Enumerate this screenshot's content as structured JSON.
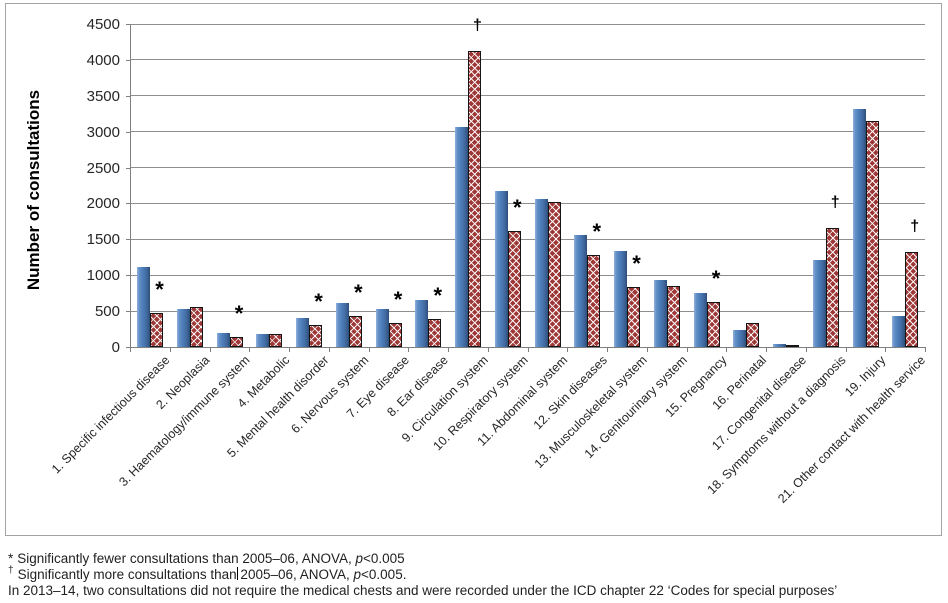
{
  "chart_data": {
    "type": "bar",
    "title": "",
    "xlabel": "",
    "ylabel": "Number of consultations",
    "ylim": [
      0,
      4500
    ],
    "yticks": [
      0,
      500,
      1000,
      1500,
      2000,
      2500,
      3000,
      3500,
      4000,
      4500
    ],
    "grid": true,
    "legend_position": "none",
    "categories": [
      "1. Specific infectious disease",
      "2. Neoplasia",
      "3. Haematology/immune system",
      "4. Metabolic",
      "5. Mental health disorder",
      "6. Nervous system",
      "7. Eye disease",
      "8. Ear disease",
      "9. Circulation system",
      "10. Respiratory system",
      "11. Abdominal system",
      "12. Skin diseases",
      "13. Musculoskeletal system",
      "14. Genitourinary system",
      "15. Pregnancy",
      "16. Perinatal",
      "17. Congenital disease",
      "18. Symptoms without a diagnosis",
      "19. Injury",
      "21. Other contact with health service"
    ],
    "series": [
      {
        "name": "blue (solid)",
        "color": "#4F81BD",
        "values": [
          1110,
          525,
          195,
          185,
          410,
          610,
          525,
          660,
          3060,
          2175,
          2060,
          1565,
          1335,
          930,
          750,
          230,
          45,
          1215,
          3315,
          435
        ]
      },
      {
        "name": "red (crosshatched)",
        "color": "#9D3837",
        "values": [
          470,
          555,
          140,
          175,
          310,
          430,
          340,
          385,
          4120,
          1615,
          2020,
          1280,
          840,
          855,
          625,
          330,
          30,
          1655,
          3150,
          1320
        ]
      }
    ],
    "annotations": [
      {
        "category_index": 0,
        "symbol": "*"
      },
      {
        "category_index": 2,
        "symbol": "*"
      },
      {
        "category_index": 4,
        "symbol": "*"
      },
      {
        "category_index": 5,
        "symbol": "*"
      },
      {
        "category_index": 6,
        "symbol": "*"
      },
      {
        "category_index": 7,
        "symbol": "*"
      },
      {
        "category_index": 8,
        "symbol": "†"
      },
      {
        "category_index": 9,
        "symbol": "*"
      },
      {
        "category_index": 11,
        "symbol": "*"
      },
      {
        "category_index": 12,
        "symbol": "*"
      },
      {
        "category_index": 14,
        "symbol": "*"
      },
      {
        "category_index": 17,
        "symbol": "†"
      },
      {
        "category_index": 19,
        "symbol": "†"
      }
    ]
  },
  "footnotes": {
    "line1": {
      "marker": "*",
      "pre": "Significantly fewer consultations than 2005–06, ANOVA, ",
      "italic": "p",
      "post": "<0.005"
    },
    "line2": {
      "marker": "†",
      "pre": "Significantly more consultations than 2005–06, ANOVA, ",
      "italic": "p",
      "post": "<0.005."
    },
    "line3": {
      "text": "In 2013–14, two consultations did not require the medical chests and were recorded under the ICD chapter 22 ‘Codes for special purposes’"
    }
  }
}
